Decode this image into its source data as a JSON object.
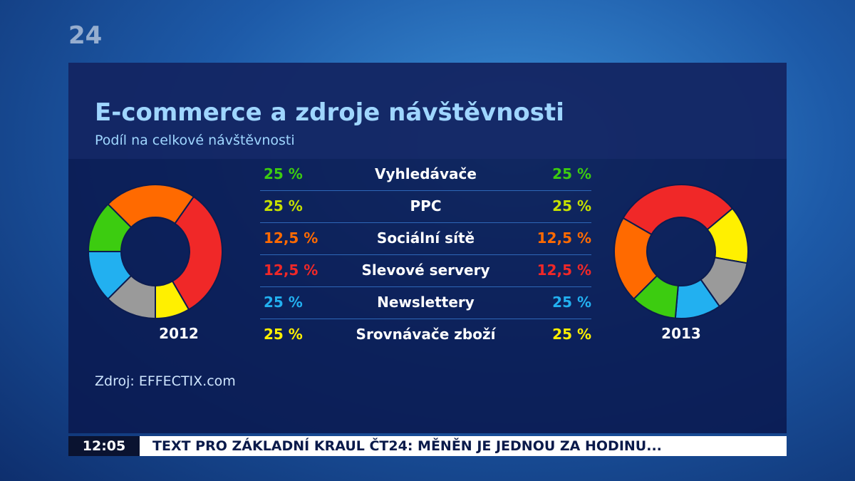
{
  "header": {
    "logo": "24",
    "title": "E-commerce a zdroje návštěvnosti",
    "subtitle": "Podíl na celkové návštěvnosti"
  },
  "table": {
    "rows": [
      {
        "left": "25 %",
        "label": "Vyhledávače",
        "right": "25 %"
      },
      {
        "left": "25 %",
        "label": "PPC",
        "right": "25 %"
      },
      {
        "left": "12,5 %",
        "label": "Sociální sítě",
        "right": "12,5 %"
      },
      {
        "left": "12,5 %",
        "label": "Slevové servery",
        "right": "12,5 %"
      },
      {
        "left": "25 %",
        "label": "Newslettery",
        "right": "25 %"
      },
      {
        "left": "25 %",
        "label": "Srovnávače zboží",
        "right": "25 %"
      }
    ]
  },
  "years": {
    "left": "2012",
    "right": "2013"
  },
  "source": "Zdroj: EFFECTIX.com",
  "ticker": {
    "time": "12:05",
    "text": "TEXT PRO ZÁKLADNÍ KRAUL ČT24: MĚNĚN JE JEDNOU ZA HODINU..."
  }
}
